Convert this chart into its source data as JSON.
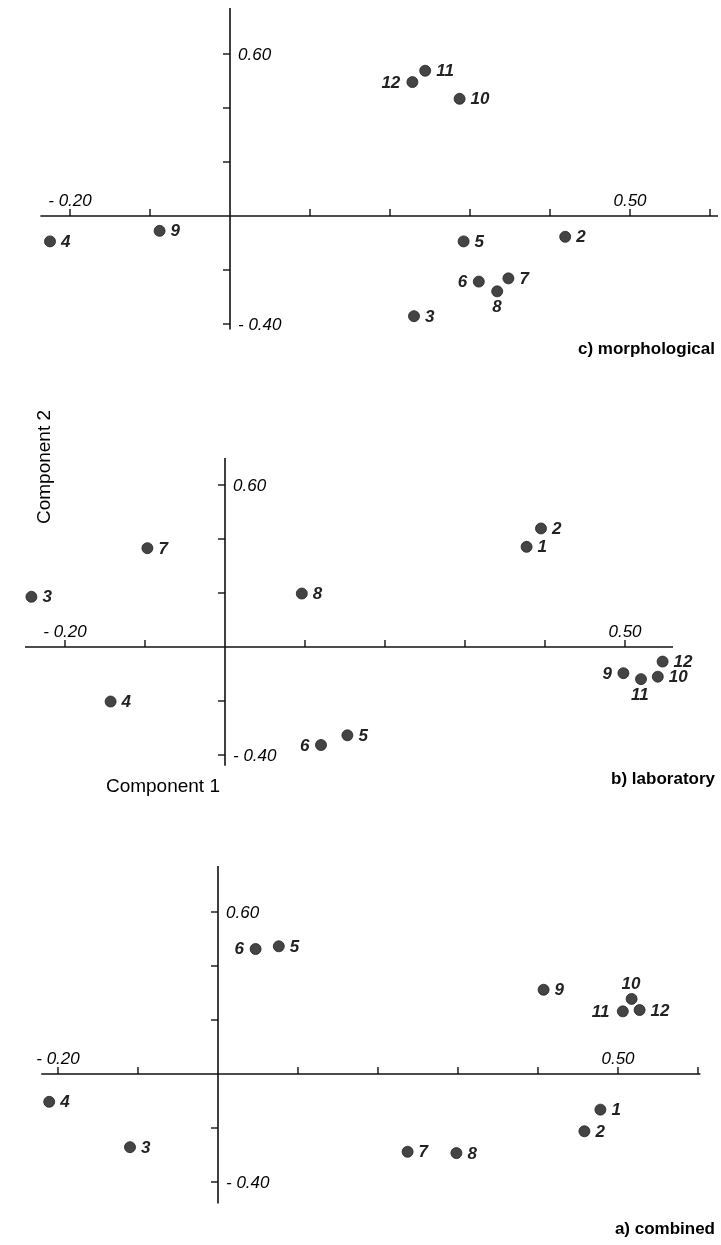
{
  "chart_data": [
    {
      "type": "scatter",
      "title": "c) morphological",
      "marker": "circle",
      "xlim": [
        -0.237,
        0.61
      ],
      "ylim": [
        -0.42,
        0.77
      ],
      "xticks": [
        {
          "value": -0.2,
          "label": "- 0.20"
        },
        {
          "value": -0.1,
          "label": null
        },
        {
          "value": 0.1,
          "label": null
        },
        {
          "value": 0.2,
          "label": null
        },
        {
          "value": 0.3,
          "label": null
        },
        {
          "value": 0.4,
          "label": null
        },
        {
          "value": 0.5,
          "label": "0.50"
        },
        {
          "value": 0.6,
          "label": null
        }
      ],
      "yticks": [
        {
          "value": -0.4,
          "label": "- 0.40"
        },
        {
          "value": -0.2,
          "label": null
        },
        {
          "value": 0.2,
          "label": null
        },
        {
          "value": 0.4,
          "label": null
        },
        {
          "value": 0.6,
          "label": "0.60"
        }
      ],
      "series": [
        {
          "color": "#444444",
          "x": [
            -0.225,
            -0.088,
            0.228,
            0.244,
            0.287,
            0.292,
            0.419,
            0.311,
            0.348,
            0.334,
            0.23
          ],
          "values": [
            -0.094,
            -0.055,
            0.496,
            0.538,
            0.434,
            -0.094,
            -0.077,
            -0.243,
            -0.231,
            -0.279,
            -0.371
          ]
        }
      ],
      "annotations": [
        {
          "text": "4",
          "x": -0.225,
          "y": -0.094
        },
        {
          "text": "9",
          "x": -0.088,
          "y": -0.055
        },
        {
          "text": "12",
          "x": 0.228,
          "y": 0.496
        },
        {
          "text": "11",
          "x": 0.244,
          "y": 0.538
        },
        {
          "text": "10",
          "x": 0.287,
          "y": 0.434
        },
        {
          "text": "5",
          "x": 0.292,
          "y": -0.094
        },
        {
          "text": "2",
          "x": 0.419,
          "y": -0.077
        },
        {
          "text": "6",
          "x": 0.311,
          "y": -0.243
        },
        {
          "text": "7",
          "x": 0.348,
          "y": -0.231
        },
        {
          "text": "8",
          "x": 0.334,
          "y": -0.279
        },
        {
          "text": "3",
          "x": 0.23,
          "y": -0.371
        }
      ]
    },
    {
      "type": "scatter",
      "title": "b) laboratory",
      "xlabel": "Component 1",
      "ylabel": "Component 2",
      "marker": "circle",
      "xlim": [
        -0.25,
        0.56
      ],
      "ylim": [
        -0.44,
        0.7
      ],
      "xticks": [
        {
          "value": -0.2,
          "label": "- 0.20"
        },
        {
          "value": -0.1,
          "label": null
        },
        {
          "value": 0.1,
          "label": null
        },
        {
          "value": 0.2,
          "label": null
        },
        {
          "value": 0.3,
          "label": null
        },
        {
          "value": 0.4,
          "label": null
        },
        {
          "value": 0.5,
          "label": "0.50"
        }
      ],
      "yticks": [
        {
          "value": -0.4,
          "label": "- 0.40"
        },
        {
          "value": -0.2,
          "label": null
        },
        {
          "value": 0.2,
          "label": null
        },
        {
          "value": 0.4,
          "label": null
        },
        {
          "value": 0.6,
          "label": "0.60"
        }
      ],
      "series": [
        {
          "color": "#444444",
          "x": [
            -0.242,
            -0.097,
            0.096,
            0.395,
            0.377,
            -0.143,
            0.12,
            0.153,
            0.498,
            0.52,
            0.541,
            0.547
          ],
          "values": [
            0.186,
            0.366,
            0.198,
            0.439,
            0.371,
            -0.202,
            -0.363,
            -0.327,
            -0.097,
            -0.119,
            -0.11,
            -0.054
          ]
        }
      ],
      "annotations": [
        {
          "text": "3",
          "x": -0.242,
          "y": 0.186
        },
        {
          "text": "7",
          "x": -0.097,
          "y": 0.366
        },
        {
          "text": "8",
          "x": 0.096,
          "y": 0.198
        },
        {
          "text": "2",
          "x": 0.395,
          "y": 0.439
        },
        {
          "text": "1",
          "x": 0.377,
          "y": 0.371
        },
        {
          "text": "4",
          "x": -0.143,
          "y": -0.202
        },
        {
          "text": "6",
          "x": 0.12,
          "y": -0.363
        },
        {
          "text": "5",
          "x": 0.153,
          "y": -0.327
        },
        {
          "text": "9",
          "x": 0.498,
          "y": -0.097
        },
        {
          "text": "11",
          "x": 0.52,
          "y": -0.119
        },
        {
          "text": "10",
          "x": 0.541,
          "y": -0.11
        },
        {
          "text": "12",
          "x": 0.547,
          "y": -0.054
        }
      ]
    },
    {
      "type": "scatter",
      "title": "a) combined",
      "marker": "circle",
      "xlim": [
        -0.221,
        0.603
      ],
      "ylim": [
        -0.48,
        0.77
      ],
      "xticks": [
        {
          "value": -0.2,
          "label": "- 0.20"
        },
        {
          "value": -0.1,
          "label": null
        },
        {
          "value": 0.1,
          "label": null
        },
        {
          "value": 0.2,
          "label": null
        },
        {
          "value": 0.3,
          "label": null
        },
        {
          "value": 0.4,
          "label": null
        },
        {
          "value": 0.5,
          "label": "0.50"
        },
        {
          "value": 0.6,
          "label": null
        }
      ],
      "yticks": [
        {
          "value": -0.4,
          "label": "- 0.40"
        },
        {
          "value": -0.2,
          "label": null
        },
        {
          "value": 0.2,
          "label": null
        },
        {
          "value": 0.4,
          "label": null
        },
        {
          "value": 0.6,
          "label": "0.60"
        }
      ],
      "series": [
        {
          "color": "#444444",
          "x": [
            0.047,
            0.076,
            0.407,
            0.517,
            0.506,
            0.527,
            -0.211,
            -0.11,
            0.237,
            0.298,
            0.458,
            0.478
          ],
          "values": [
            0.463,
            0.473,
            0.312,
            0.278,
            0.232,
            0.237,
            -0.103,
            -0.271,
            -0.288,
            -0.293,
            -0.212,
            -0.132
          ]
        }
      ],
      "annotations": [
        {
          "text": "6",
          "x": 0.047,
          "y": 0.463
        },
        {
          "text": "5",
          "x": 0.076,
          "y": 0.473
        },
        {
          "text": "9",
          "x": 0.407,
          "y": 0.312
        },
        {
          "text": "10",
          "x": 0.517,
          "y": 0.278
        },
        {
          "text": "11",
          "x": 0.506,
          "y": 0.232
        },
        {
          "text": "12",
          "x": 0.527,
          "y": 0.237
        },
        {
          "text": "4",
          "x": -0.211,
          "y": -0.103
        },
        {
          "text": "3",
          "x": -0.11,
          "y": -0.271
        },
        {
          "text": "7",
          "x": 0.237,
          "y": -0.288
        },
        {
          "text": "8",
          "x": 0.298,
          "y": -0.293
        },
        {
          "text": "2",
          "x": 0.458,
          "y": -0.212
        },
        {
          "text": "1",
          "x": 0.478,
          "y": -0.132
        }
      ]
    }
  ]
}
